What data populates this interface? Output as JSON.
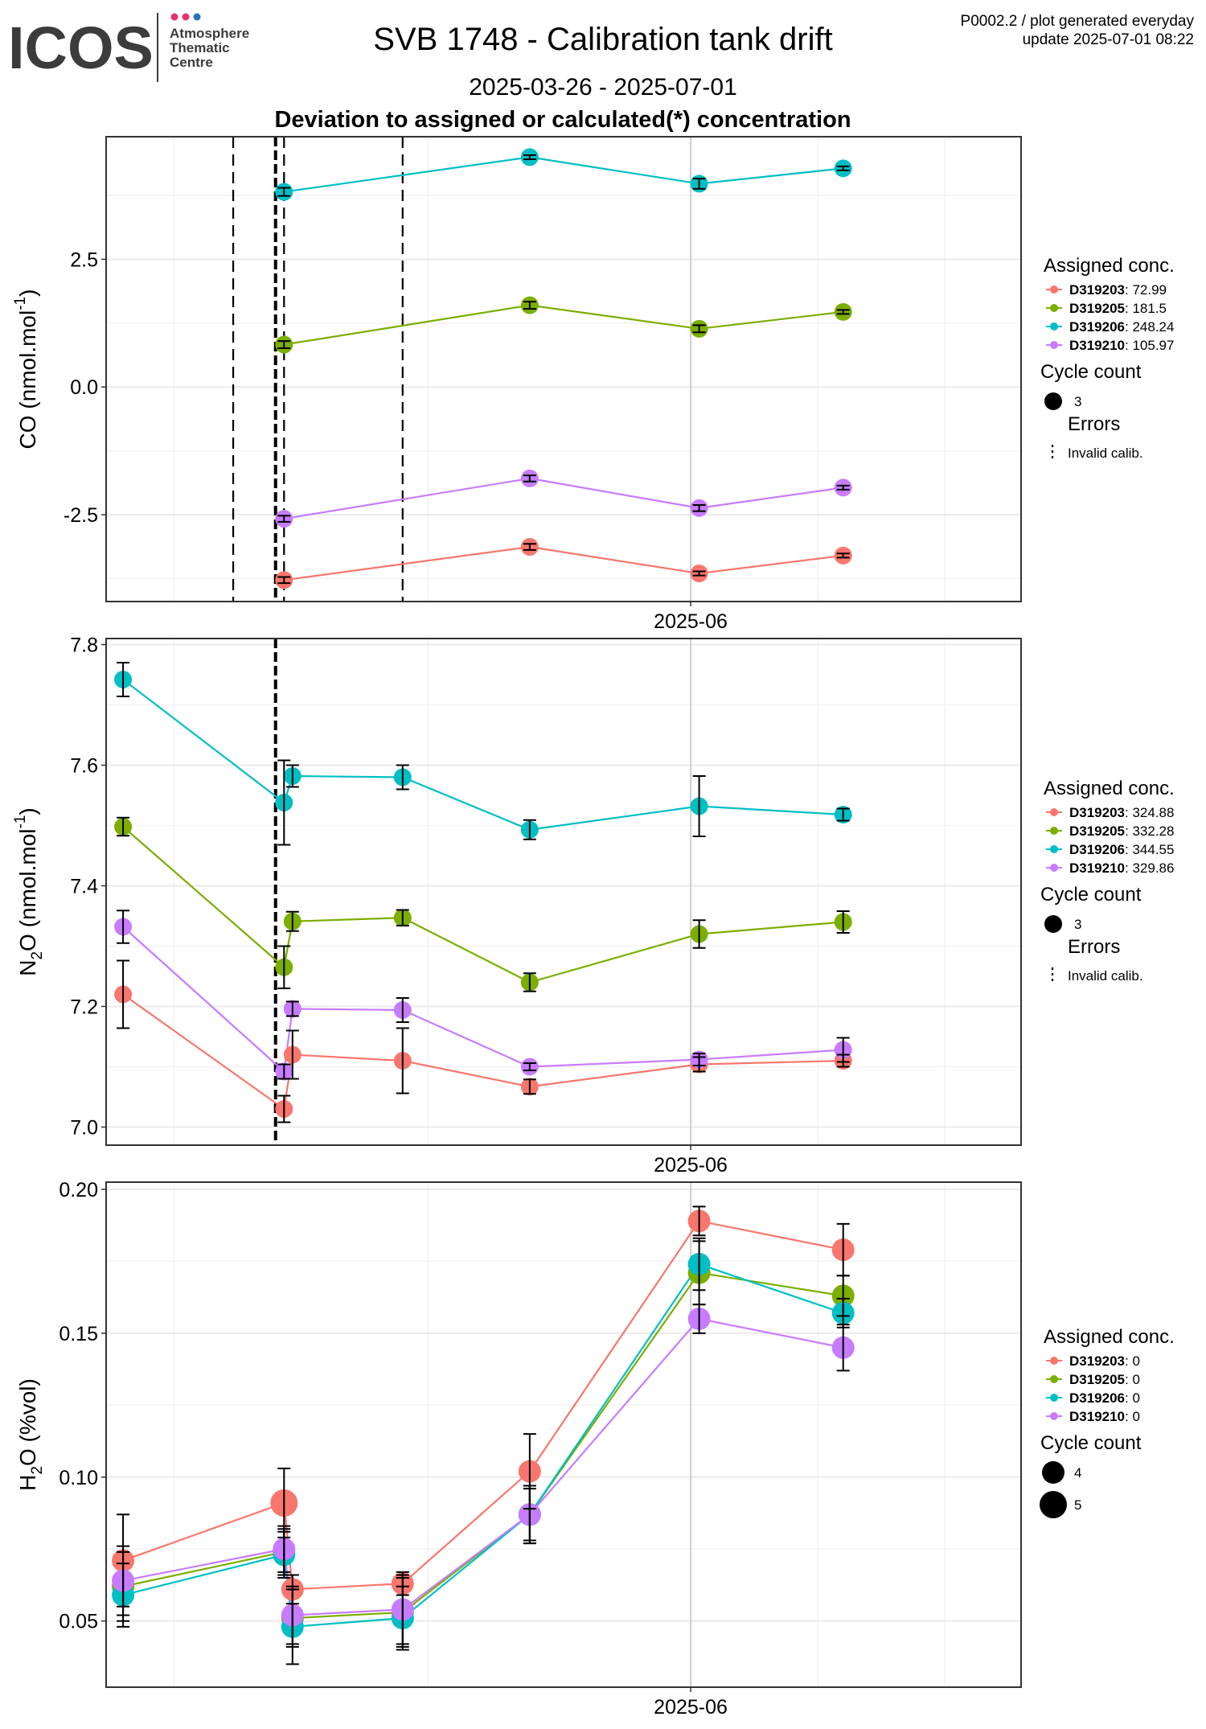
{
  "header": {
    "logo_text": "ICOS",
    "logo_sub": [
      "Atmosphere",
      "Thematic",
      "Centre"
    ],
    "logo_dot_colors": [
      "#e8336b",
      "#e8336b",
      "#2b6fc1"
    ],
    "title": "SVB 1748 - Calibration tank drift",
    "date_range": "2025-03-26 - 2025-07-01",
    "subtitle": "Deviation to assigned or calculated(*) concentration",
    "plot_id": "P0002.2 / plot generated everyday",
    "update": "update  2025-07-01 08:22"
  },
  "colors": {
    "D319203": "#f8766d",
    "D319205": "#7cae00",
    "D319206": "#00bfc4",
    "D319210": "#c77cff"
  },
  "legend_labels": {
    "assigned": "Assigned conc.",
    "cycle": "Cycle count",
    "errors": "Errors",
    "invalid": "Invalid calib."
  },
  "chart_data": [
    {
      "type": "scatter",
      "name": "co",
      "ylabel_main": "CO (nmol.mol",
      "ylabel_sup": "-1",
      "ylabel_end": ")",
      "x_tick": "2025-06",
      "x_range": [
        "2025-03-24",
        "2025-07-10"
      ],
      "ylim": [
        -4.2,
        4.9
      ],
      "y_ticks": [
        -2.5,
        0,
        2.5
      ],
      "y_tick_labels": [
        "-2.5",
        "0.0",
        "2.5"
      ],
      "dashed_lines": [
        "2025-04-08",
        "2025-04-14",
        "2025-04-28"
      ],
      "thick_dashed_lines": [
        "2025-04-13"
      ],
      "series": [
        {
          "tank": "D319203",
          "assigned": "72.99",
          "points": [
            [
              "2025-04-14",
              -3.78,
              0.06
            ],
            [
              "2025-05-13",
              -3.13,
              0.06
            ],
            [
              "2025-06-02",
              -3.65,
              0.04
            ],
            [
              "2025-06-19",
              -3.3,
              0.04
            ]
          ]
        },
        {
          "tank": "D319205",
          "assigned": "181.5",
          "points": [
            [
              "2025-04-14",
              0.83,
              0.07
            ],
            [
              "2025-05-13",
              1.6,
              0.07
            ],
            [
              "2025-06-02",
              1.14,
              0.07
            ],
            [
              "2025-06-19",
              1.47,
              0.04
            ]
          ]
        },
        {
          "tank": "D319206",
          "assigned": "248.24",
          "points": [
            [
              "2025-04-14",
              3.82,
              0.08
            ],
            [
              "2025-05-13",
              4.5,
              0.04
            ],
            [
              "2025-06-02",
              3.98,
              0.1
            ],
            [
              "2025-06-19",
              4.28,
              0.04
            ]
          ]
        },
        {
          "tank": "D319210",
          "assigned": "105.97",
          "points": [
            [
              "2025-04-14",
              -2.58,
              0.06
            ],
            [
              "2025-05-13",
              -1.79,
              0.06
            ],
            [
              "2025-06-02",
              -2.37,
              0.06
            ],
            [
              "2025-06-19",
              -1.97,
              0.04
            ]
          ]
        }
      ],
      "cycle_legend": [
        {
          "label": "3",
          "size": 3
        }
      ]
    },
    {
      "type": "scatter",
      "name": "n2o",
      "ylabel_main": "N",
      "ylabel_sub": "2",
      "ylabel_mid": "O (nmol.mol",
      "ylabel_sup": "-1",
      "ylabel_end": ")",
      "x_tick": "2025-06",
      "x_range": [
        "2025-03-24",
        "2025-07-10"
      ],
      "ylim": [
        6.97,
        7.81
      ],
      "y_ticks": [
        7.0,
        7.2,
        7.4,
        7.6,
        7.8
      ],
      "y_tick_labels": [
        "7.0",
        "7.2",
        "7.4",
        "7.6",
        "7.8"
      ],
      "dashed_lines": [],
      "thick_dashed_lines": [
        "2025-04-13"
      ],
      "series": [
        {
          "tank": "D319203",
          "assigned": "324.88",
          "points": [
            [
              "2025-03-26",
              7.22,
              0.056
            ],
            [
              "2025-04-14",
              7.03,
              0.022
            ],
            [
              "2025-04-15",
              7.12,
              0.04
            ],
            [
              "2025-04-28",
              7.11,
              0.054
            ],
            [
              "2025-05-13",
              7.067,
              0.012
            ],
            [
              "2025-06-02",
              7.104,
              0.012
            ],
            [
              "2025-06-19",
              7.11,
              0.01
            ]
          ]
        },
        {
          "tank": "D319205",
          "assigned": "332.28",
          "points": [
            [
              "2025-03-26",
              7.498,
              0.015
            ],
            [
              "2025-04-14",
              7.265,
              0.035
            ],
            [
              "2025-04-15",
              7.341,
              0.016
            ],
            [
              "2025-04-28",
              7.347,
              0.013
            ],
            [
              "2025-05-13",
              7.24,
              0.015
            ],
            [
              "2025-06-02",
              7.32,
              0.023
            ],
            [
              "2025-06-19",
              7.34,
              0.018
            ]
          ]
        },
        {
          "tank": "D319206",
          "assigned": "344.55",
          "points": [
            [
              "2025-03-26",
              7.742,
              0.028
            ],
            [
              "2025-04-14",
              7.538,
              0.07
            ],
            [
              "2025-04-15",
              7.582,
              0.018
            ],
            [
              "2025-04-28",
              7.58,
              0.02
            ],
            [
              "2025-05-13",
              7.493,
              0.016
            ],
            [
              "2025-06-02",
              7.532,
              0.05
            ],
            [
              "2025-06-19",
              7.518,
              0.01
            ]
          ]
        },
        {
          "tank": "D319210",
          "assigned": "329.86",
          "points": [
            [
              "2025-03-26",
              7.332,
              0.027
            ],
            [
              "2025-04-14",
              7.092,
              0.012
            ],
            [
              "2025-04-15",
              7.196,
              0.012
            ],
            [
              "2025-04-28",
              7.194,
              0.02
            ],
            [
              "2025-05-13",
              7.1,
              0.006
            ],
            [
              "2025-06-02",
              7.112,
              0.01
            ],
            [
              "2025-06-19",
              7.128,
              0.02
            ]
          ]
        }
      ],
      "cycle_legend": [
        {
          "label": "3",
          "size": 3
        }
      ]
    },
    {
      "type": "scatter",
      "name": "h2o",
      "ylabel_main": "H",
      "ylabel_sub": "2",
      "ylabel_mid": "O (%vol)",
      "x_tick": "2025-06",
      "x_range": [
        "2025-03-24",
        "2025-07-10"
      ],
      "ylim": [
        0.027,
        0.2025
      ],
      "y_ticks": [
        0.05,
        0.1,
        0.15,
        0.2
      ],
      "y_tick_labels": [
        "0.05",
        "0.10",
        "0.15",
        "0.20"
      ],
      "dashed_lines": [],
      "thick_dashed_lines": [],
      "series": [
        {
          "tank": "D319203",
          "assigned": "0",
          "points": [
            [
              "2025-03-26",
              0.071,
              0.016,
              4
            ],
            [
              "2025-04-14",
              0.091,
              0.012,
              5
            ],
            [
              "2025-04-15",
              0.061,
              0.005,
              4
            ],
            [
              "2025-04-28",
              0.063,
              0.004,
              4
            ],
            [
              "2025-05-13",
              0.102,
              0.013,
              4
            ],
            [
              "2025-06-02",
              0.189,
              0.005,
              4
            ],
            [
              "2025-06-19",
              0.179,
              0.009,
              4
            ]
          ]
        },
        {
          "tank": "D319205",
          "assigned": "0",
          "points": [
            [
              "2025-03-26",
              0.062,
              0.012,
              4
            ],
            [
              "2025-04-14",
              0.074,
              0.008,
              4
            ],
            [
              "2025-04-15",
              0.051,
              0.01,
              4
            ],
            [
              "2025-04-28",
              0.053,
              0.012,
              4
            ],
            [
              "2025-05-13",
              0.087,
              0.01,
              4
            ],
            [
              "2025-06-02",
              0.171,
              0.011,
              4
            ],
            [
              "2025-06-19",
              0.163,
              0.007,
              4
            ]
          ]
        },
        {
          "tank": "D319206",
          "assigned": "0",
          "points": [
            [
              "2025-03-26",
              0.059,
              0.011,
              4
            ],
            [
              "2025-04-14",
              0.073,
              0.008,
              4
            ],
            [
              "2025-04-15",
              0.048,
              0.013,
              4
            ],
            [
              "2025-04-28",
              0.051,
              0.011,
              4
            ],
            [
              "2025-05-13",
              0.087,
              0.009,
              4
            ],
            [
              "2025-06-02",
              0.174,
              0.009,
              4
            ],
            [
              "2025-06-19",
              0.157,
              0.005,
              4
            ]
          ]
        },
        {
          "tank": "D319210",
          "assigned": "0",
          "points": [
            [
              "2025-03-26",
              0.064,
              0.012,
              4
            ],
            [
              "2025-04-14",
              0.075,
              0.008,
              4
            ],
            [
              "2025-04-15",
              0.052,
              0.01,
              4
            ],
            [
              "2025-04-28",
              0.054,
              0.012,
              4
            ],
            [
              "2025-05-13",
              0.087,
              0.01,
              4
            ],
            [
              "2025-06-02",
              0.155,
              0.005,
              4
            ],
            [
              "2025-06-19",
              0.145,
              0.008,
              4
            ]
          ]
        }
      ],
      "cycle_legend": [
        {
          "label": "4",
          "size": 4
        },
        {
          "label": "5",
          "size": 5
        }
      ]
    }
  ]
}
